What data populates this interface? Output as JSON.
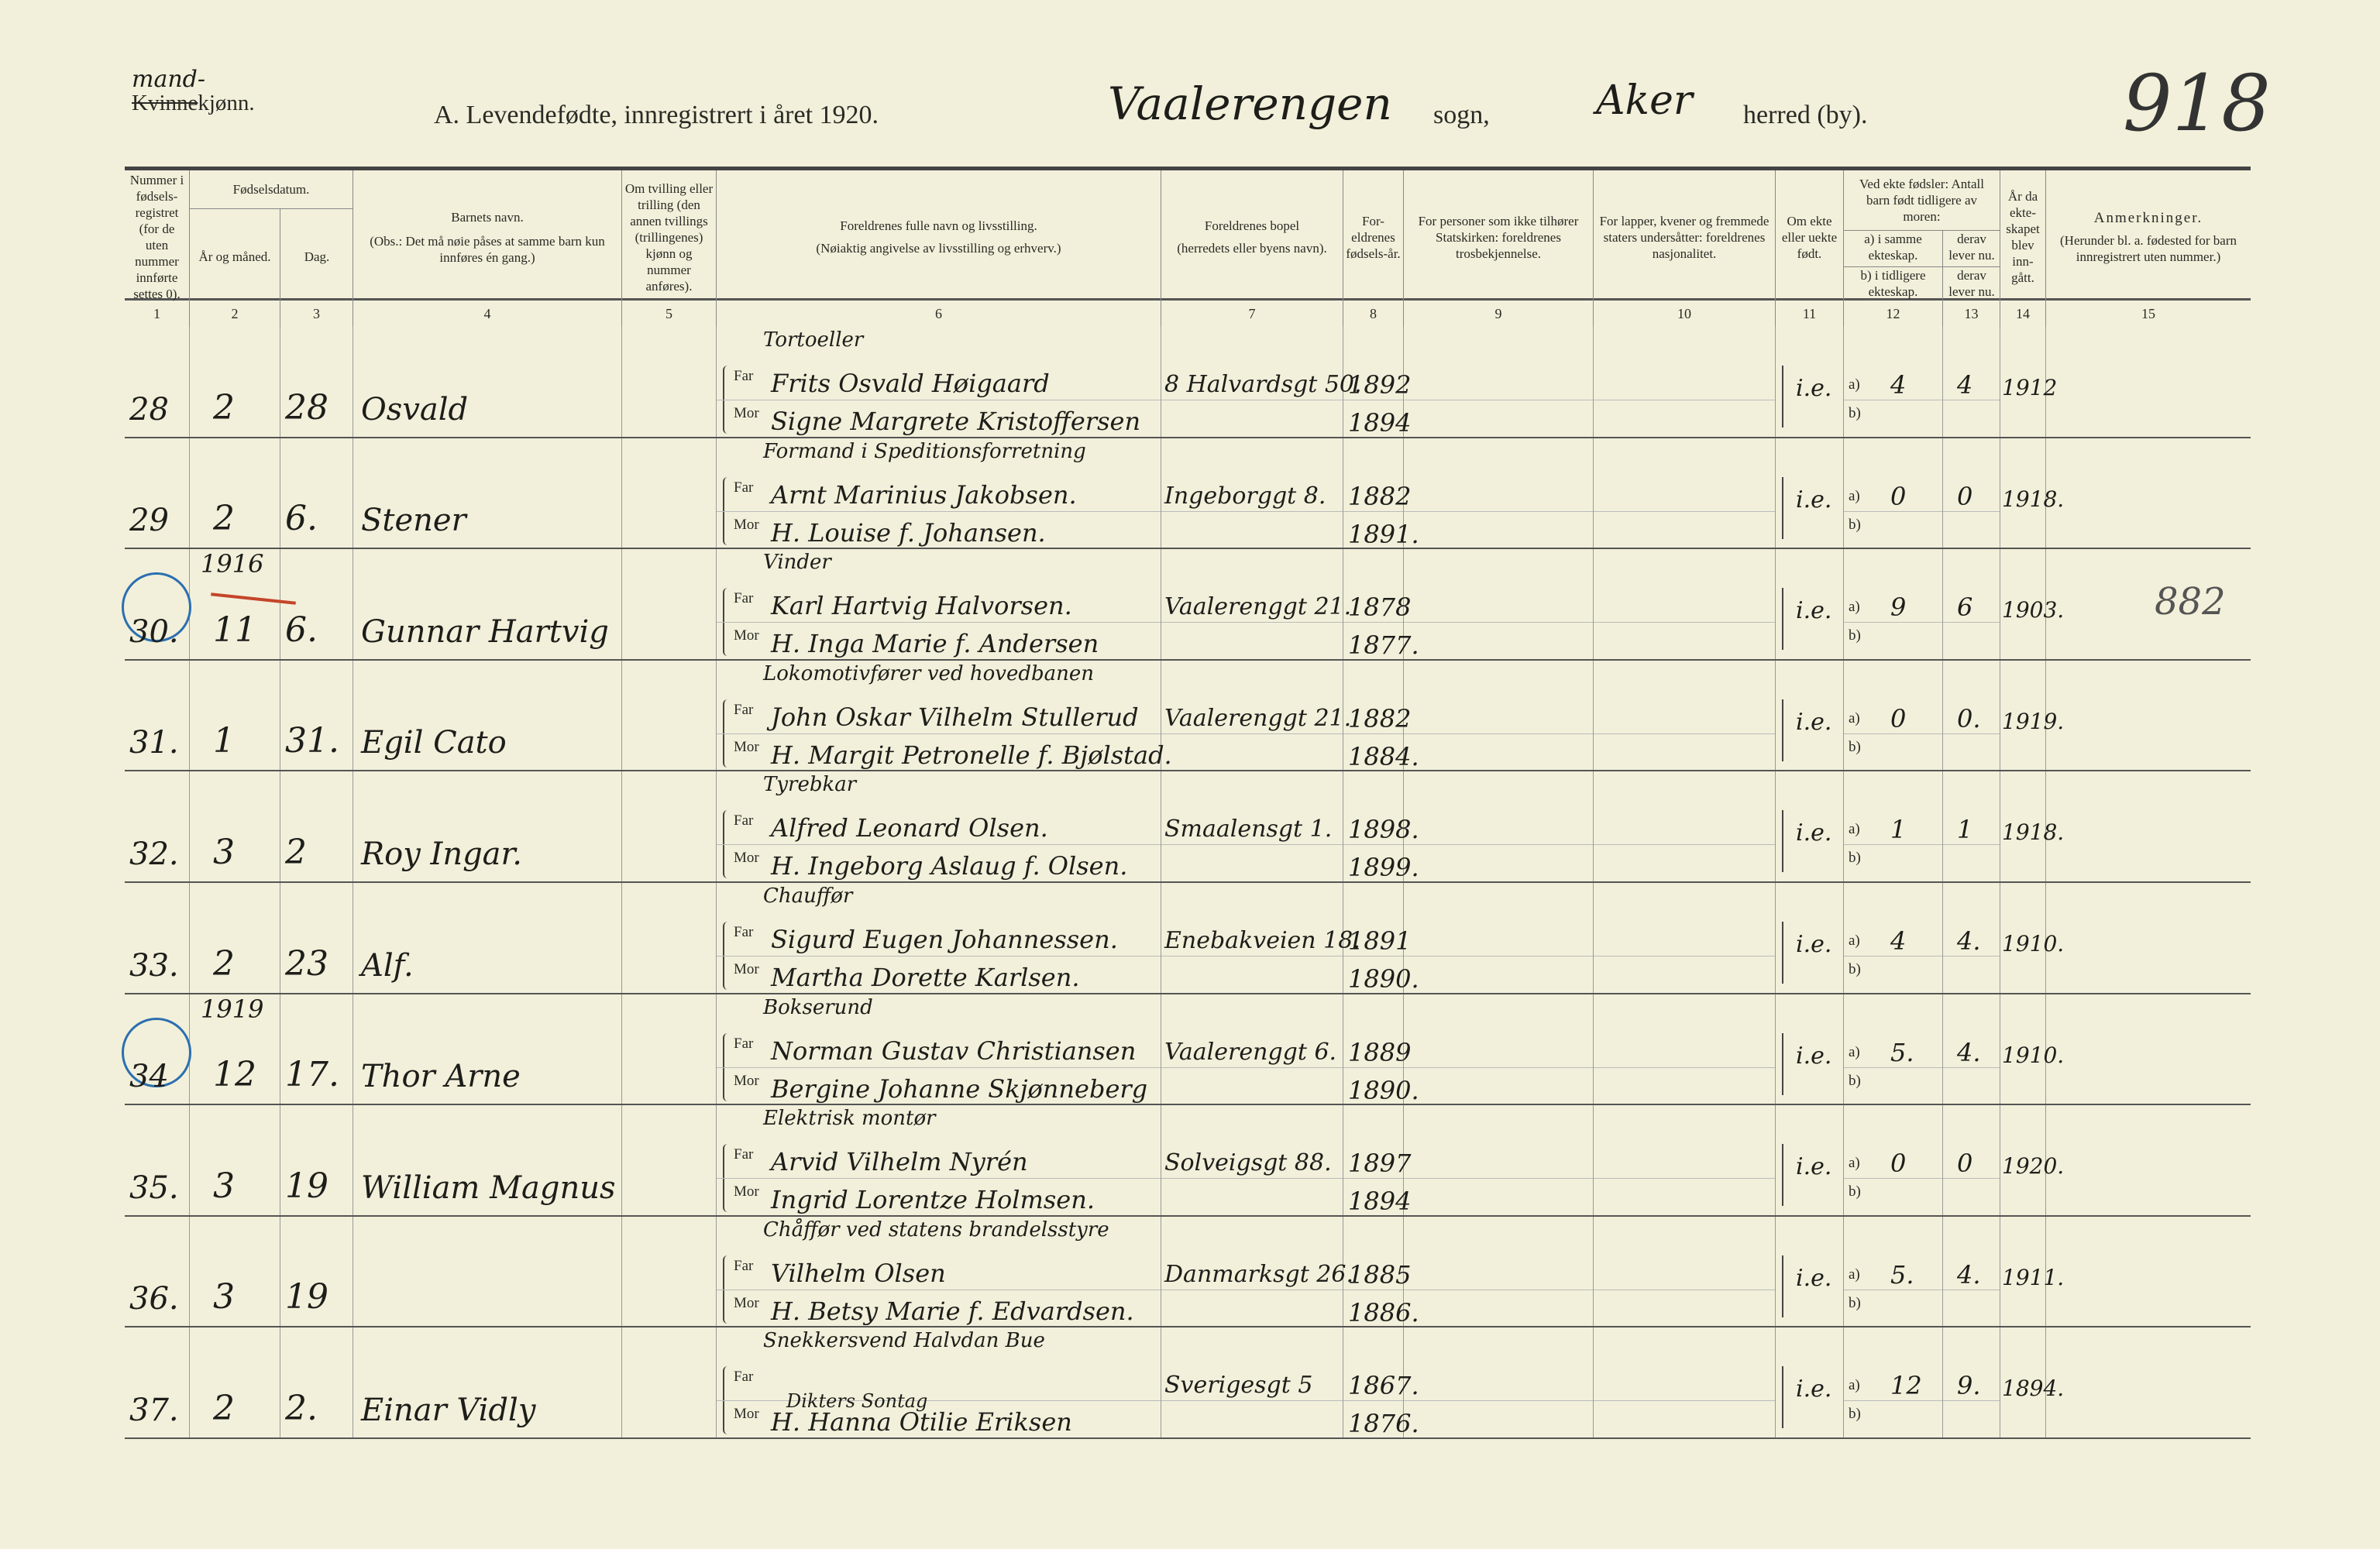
{
  "header": {
    "gender_top": "mand-",
    "gender_struck": "Kvinne",
    "gender_suffix": "kjønn.",
    "title": "A.  Levendefødte, innregistrert i året 1920.",
    "sogn_value": "Vaalerengen",
    "sogn_label": "sogn,",
    "herred_value": "Aker",
    "herred_label": "herred (by).",
    "page_number": "918"
  },
  "columns": {
    "c1": "Nummer i fødsels-registret (for de uten nummer innførte settes 0).",
    "c23": "Fødselsdatum.",
    "c2": "År og måned.",
    "c3": "Dag.",
    "c4": "Barnets navn.",
    "c4_note": "(Obs.: Det må nøie påses at samme barn kun innføres én gang.)",
    "c5": "Om tvilling eller trilling (den annen tvillings (trillingenes) kjønn og nummer anføres).",
    "c6": "Foreldrenes fulle navn og livsstilling.",
    "c6_note": "(Nøiaktig angivelse av livsstilling og erhverv.)",
    "c7": "Foreldrenes bopel",
    "c7_note": "(herredets eller byens navn).",
    "c8": "For-eldrenes fødsels-år.",
    "c9": "For personer som ikke tilhører Statskirken: foreldrenes trosbekjennelse.",
    "c10": "For lapper, kvener og fremmede staters undersåtter: foreldrenes nasjonalitet.",
    "c11": "Om ekte eller uekte født.",
    "c1213": "Ved ekte fødsler: Antall barn født tidligere av moren:",
    "c12a": "a) i samme ekteskap.",
    "c13a": "derav lever nu.",
    "c12b": "b) i tidligere ekteskap.",
    "c13b": "derav lever nu.",
    "c14": "År da ekte-skapet blev inn-gått.",
    "c15": "Anmerkninger.",
    "c15_note": "(Herunder bl. a. fødested for barn innregistrert uten nummer.)",
    "numbers": [
      "1",
      "2",
      "3",
      "4",
      "5",
      "6",
      "7",
      "8",
      "9",
      "10",
      "11",
      "12",
      "13",
      "14",
      "15"
    ]
  },
  "labels": {
    "far": "Far",
    "mor": "Mor",
    "a": "a)",
    "b": "b)"
  },
  "rows": [
    {
      "nr": "28",
      "year_note": "",
      "month": "2",
      "day": "28",
      "name": "Osvald",
      "occupation": "Tortoeller",
      "father": "Frits Osvald Høigaard",
      "address": "8 Halvardsgt 50.",
      "father_year": "1892",
      "mother": "Signe Margrete Kristoffersen",
      "mother_year": "1894",
      "legit": "i.e.",
      "a": "4",
      "a_alive": "4",
      "married": "1912",
      "remark": "",
      "circled": false
    },
    {
      "nr": "29",
      "year_note": "",
      "month": "2",
      "day": "6.",
      "name": "Stener",
      "occupation": "Formand i Speditionsforretning",
      "father": "Arnt Marinius Jakobsen.",
      "address": "Ingeborggt 8.",
      "father_year": "1882",
      "mother": "H. Louise f. Johansen.",
      "mother_year": "1891.",
      "legit": "i.e.",
      "a": "0",
      "a_alive": "0",
      "married": "1918.",
      "remark": "",
      "circled": false
    },
    {
      "nr": "30.",
      "year_note": "1916",
      "month": "11",
      "day": "6.",
      "name": "Gunnar Hartvig",
      "occupation": "Vinder",
      "father": "Karl Hartvig Halvorsen.",
      "address": "Vaalerenggt 21.",
      "father_year": "1878",
      "mother": "H. Inga Marie f. Andersen",
      "mother_year": "1877.",
      "legit": "i.e.",
      "a": "9",
      "a_alive": "6",
      "married": "1903.",
      "remark": "882",
      "circled": true
    },
    {
      "nr": "31.",
      "year_note": "",
      "month": "1",
      "day": "31.",
      "name": "Egil Cato",
      "occupation": "Lokomotivfører ved hovedbanen",
      "father": "John Oskar Vilhelm Stullerud",
      "address": "Vaalerenggt 21.",
      "father_year": "1882",
      "mother": "H. Margit Petronelle f. Bjølstad.",
      "mother_year": "1884.",
      "legit": "i.e.",
      "a": "0",
      "a_alive": "0.",
      "married": "1919.",
      "remark": "",
      "circled": false
    },
    {
      "nr": "32.",
      "year_note": "",
      "month": "3",
      "day": "2",
      "name": "Roy Ingar.",
      "occupation": "Tyrebkar",
      "father": "Alfred Leonard Olsen.",
      "address": "Smaalensgt 1.",
      "father_year": "1898.",
      "mother": "H. Ingeborg Aslaug f. Olsen.",
      "mother_year": "1899.",
      "legit": "i.e.",
      "a": "1",
      "a_alive": "1",
      "married": "1918.",
      "remark": "",
      "circled": false
    },
    {
      "nr": "33.",
      "year_note": "",
      "month": "2",
      "day": "23",
      "name": "Alf.",
      "occupation": "Chauffør",
      "father": "Sigurd Eugen Johannessen.",
      "address": "Enebakveien 18.",
      "father_year": "1891",
      "mother": "Martha Dorette Karlsen.",
      "mother_year": "1890.",
      "legit": "i.e.",
      "a": "4",
      "a_alive": "4.",
      "married": "1910.",
      "remark": "",
      "circled": false
    },
    {
      "nr": "34",
      "year_note": "1919",
      "month": "12",
      "day": "17.",
      "name": "Thor Arne",
      "occupation": "Bokserund",
      "father": "Norman Gustav Christiansen",
      "address": "Vaalerenggt 6.",
      "father_year": "1889",
      "mother": "Bergine Johanne Skjønneberg",
      "mother_year": "1890.",
      "legit": "i.e.",
      "a": "5.",
      "a_alive": "4.",
      "married": "1910.",
      "remark": "",
      "circled": true
    },
    {
      "nr": "35.",
      "year_note": "",
      "month": "3",
      "day": "19",
      "name": "William Magnus",
      "occupation": "Elektrisk montør",
      "father": "Arvid Vilhelm Nyrén",
      "address": "Solveigsgt 88.",
      "father_year": "1897",
      "mother": "Ingrid Lorentze Holmsen.",
      "mother_year": "1894",
      "legit": "i.e.",
      "a": "0",
      "a_alive": "0",
      "married": "1920.",
      "remark": "",
      "circled": false
    },
    {
      "nr": "36.",
      "year_note": "",
      "month": "3",
      "day": "19",
      "name": "",
      "occupation": "Chåffør ved statens brandelsstyre",
      "father": "Vilhelm Olsen",
      "address": "Danmarksgt 26.",
      "father_year": "1885",
      "mother": "H. Betsy Marie f. Edvardsen.",
      "mother_year": "1886.",
      "legit": "i.e.",
      "a": "5.",
      "a_alive": "4.",
      "married": "1911.",
      "remark": "",
      "circled": false
    },
    {
      "nr": "37.",
      "year_note": "",
      "month": "2",
      "day": "2.",
      "name": "Einar Vidly",
      "occupation": "Snekkersvend Halvdan Bue",
      "father": "",
      "address": "Sverigesgt 5",
      "father_year": "1867.",
      "mother_note": "Dikters Sontag",
      "mother": "H. Hanna Otilie Eriksen",
      "mother_year": "1876.",
      "legit": "i.e.",
      "a": "12",
      "a_alive": "9.",
      "married": "1894.",
      "remark": "",
      "circled": false
    }
  ]
}
